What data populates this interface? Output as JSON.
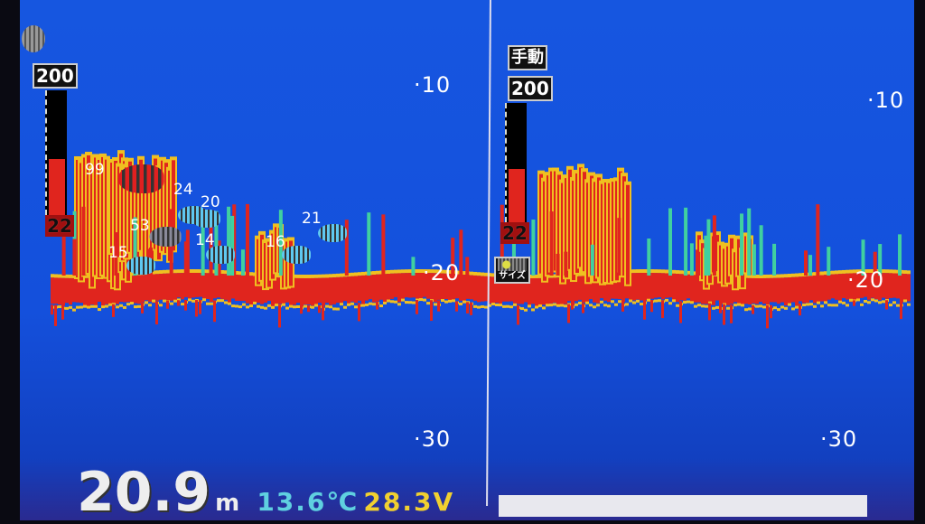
{
  "depth_scale": {
    "left": [
      "·10",
      "·20",
      "·30"
    ],
    "right": [
      "·10",
      "·20",
      "·30"
    ]
  },
  "left_panel": {
    "gain_top": "200",
    "gain_level": "22",
    "gain_fill_percent": 45
  },
  "right_panel": {
    "mode": "手動",
    "gain_top": "200",
    "gain_level": "22",
    "gain_fill_percent": 45,
    "size_button": "サイズ"
  },
  "fish_marks": [
    {
      "size": "99",
      "color": "#e02020"
    },
    {
      "size": "24",
      "color": "#5fc8f0"
    },
    {
      "size": "20",
      "color": "#5fc8f0"
    },
    {
      "size": "53",
      "color": "#8a8a9a"
    },
    {
      "size": "14",
      "color": "#5fc8f0"
    },
    {
      "size": "16",
      "color": "#5fc8f0"
    },
    {
      "size": "15",
      "color": "#5fc8f0"
    },
    {
      "size": "21",
      "color": "#5fc8f0"
    }
  ],
  "status": {
    "depth": "20.9",
    "depth_unit": "m",
    "water_temp": "13.6℃",
    "voltage": "28.3V"
  },
  "colors": {
    "water": "#1656e0",
    "strong_echo": "#e0251e",
    "mid_echo": "#f0c020",
    "weak_echo": "#40d0a0",
    "temp": "#5fd0e0",
    "voltage": "#f0d030"
  }
}
